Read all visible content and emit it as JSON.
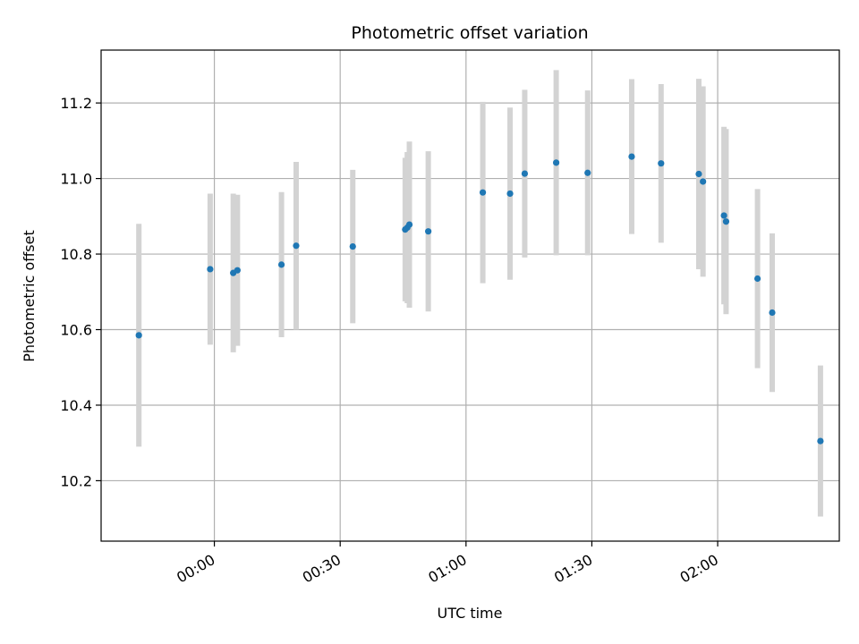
{
  "chart_data": {
    "type": "scatter",
    "title": "Photometric offset variation",
    "xlabel": "UTC time",
    "ylabel": "Photometric offset",
    "x_ticks": [
      "00:00",
      "00:30",
      "01:00",
      "01:30",
      "02:00"
    ],
    "y_ticks": [
      "10.2",
      "10.4",
      "10.6",
      "10.8",
      "11.0",
      "11.2"
    ],
    "xlim": [
      "23:33",
      "02:29"
    ],
    "ylim": [
      10.04,
      11.34
    ],
    "grid": true,
    "errorbar_color": "#d3d3d3",
    "marker_color": "#1f77b4",
    "points": [
      {
        "x": "23:42",
        "y": 10.585,
        "yerr": 0.295
      },
      {
        "x": "23:59",
        "y": 10.76,
        "yerr": 0.2
      },
      {
        "x": "00:04.5",
        "y": 10.75,
        "yerr": 0.21
      },
      {
        "x": "00:05.5",
        "y": 10.757,
        "yerr": 0.2
      },
      {
        "x": "00:16",
        "y": 10.772,
        "yerr": 0.192
      },
      {
        "x": "00:19.5",
        "y": 10.822,
        "yerr": 0.222
      },
      {
        "x": "00:33",
        "y": 10.82,
        "yerr": 0.203
      },
      {
        "x": "00:45.5",
        "y": 10.865,
        "yerr": 0.19
      },
      {
        "x": "00:46",
        "y": 10.87,
        "yerr": 0.2
      },
      {
        "x": "00:46.5",
        "y": 10.878,
        "yerr": 0.22
      },
      {
        "x": "00:51",
        "y": 10.86,
        "yerr": 0.212
      },
      {
        "x": "01:04",
        "y": 10.963,
        "yerr": 0.24
      },
      {
        "x": "01:10.5",
        "y": 10.96,
        "yerr": 0.228
      },
      {
        "x": "01:14",
        "y": 11.013,
        "yerr": 0.222
      },
      {
        "x": "01:21.5",
        "y": 11.042,
        "yerr": 0.245
      },
      {
        "x": "01:29",
        "y": 11.015,
        "yerr": 0.218
      },
      {
        "x": "01:39.5",
        "y": 11.058,
        "yerr": 0.205
      },
      {
        "x": "01:46.5",
        "y": 11.04,
        "yerr": 0.21
      },
      {
        "x": "01:55.5",
        "y": 11.012,
        "yerr": 0.252
      },
      {
        "x": "01:56.5",
        "y": 10.992,
        "yerr": 0.252
      },
      {
        "x": "02:01.5",
        "y": 10.902,
        "yerr": 0.235
      },
      {
        "x": "02:02",
        "y": 10.886,
        "yerr": 0.245
      },
      {
        "x": "02:09.5",
        "y": 10.735,
        "yerr": 0.237
      },
      {
        "x": "02:13",
        "y": 10.645,
        "yerr": 0.21
      },
      {
        "x": "02:24.5",
        "y": 10.305,
        "yerr": 0.2
      }
    ]
  }
}
